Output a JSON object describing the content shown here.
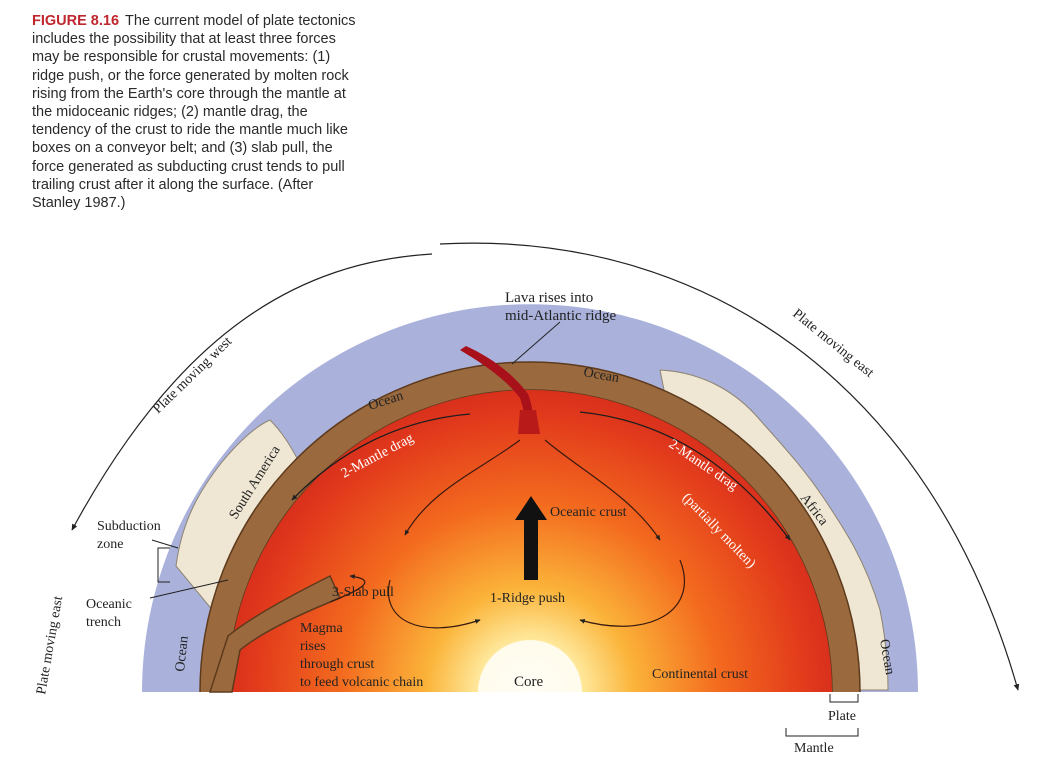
{
  "caption": {
    "figure_label": "FIGURE 8.16",
    "text": "The current model of plate tectonics includes the possibility that at least three forces may be responsible for crustal movements: (1) ridge push, or the force generated by molten rock rising from the Earth's core through the mantle at the midoceanic ridges; (2) mantle drag, the tendency of the crust to ride the mantle much like boxes on a conveyor belt; and (3) slab pull, the force generated as subducting crust tends to pull trailing crust after it along the surface. (After Stanley 1987.)"
  },
  "labels": {
    "lava_line1": "Lava rises into",
    "lava_line2": "mid-Atlantic ridge",
    "plate_west": "Plate moving west",
    "plate_east_right": "Plate moving east",
    "plate_east_left": "Plate moving east",
    "ocean_left_top": "Ocean",
    "ocean_center": "Ocean",
    "ocean_left_bottom": "Ocean",
    "ocean_right_bottom": "Ocean",
    "south_america": "South America",
    "africa": "Africa",
    "mantle_drag_left": "2-Mantle drag",
    "mantle_drag_right": "2-Mantle drag",
    "partially_molten": "(partially molten)",
    "oceanic_crust": "Oceanic crust",
    "subduction_line1": "Subduction",
    "subduction_line2": "zone",
    "trench_line1": "Oceanic",
    "trench_line2": "trench",
    "slab_pull": "3-Slab pull",
    "ridge_push": "1-Ridge push",
    "magma_line1": "Magma",
    "magma_line2": "rises",
    "magma_line3": "through crust",
    "magma_line4": "to feed volcanic chain",
    "core": "Core",
    "continental_crust": "Continental crust",
    "plate": "Plate",
    "mantle": "Mantle"
  },
  "colors": {
    "ocean": "#aab2dc",
    "crust": "#9a6a3e",
    "crust_dark": "#6b4322",
    "continent": "#efe7d4",
    "mantle_outer": "#d62a1c",
    "mantle_mid": "#f07a1c",
    "core": "#fffbe8",
    "lava": "#a8101a"
  }
}
